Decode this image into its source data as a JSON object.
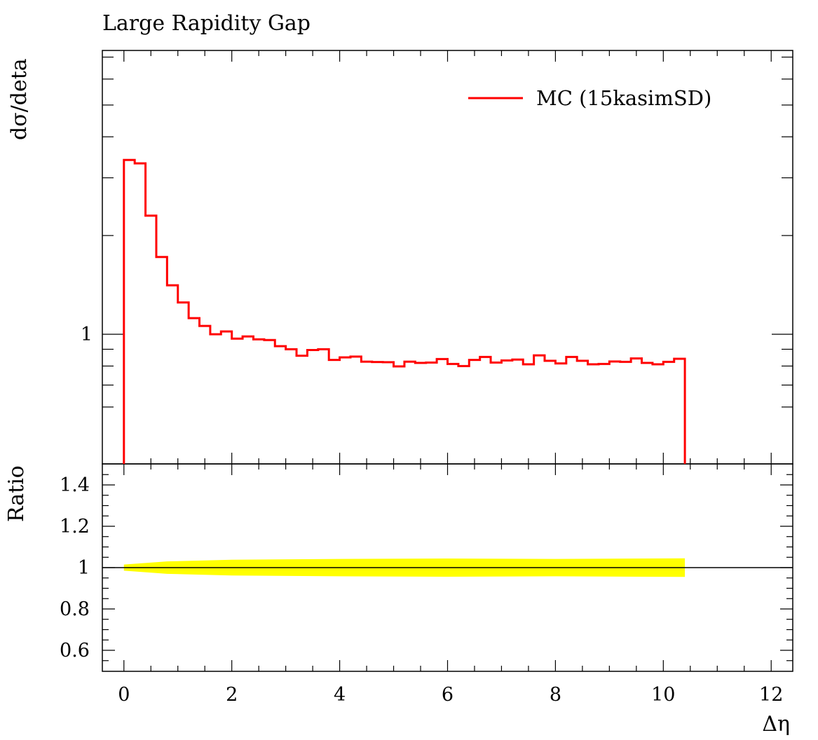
{
  "colors": {
    "mc": "#ff0000",
    "band": "#ffff00",
    "axis": "#000000"
  },
  "chart_data": {
    "type": "line",
    "title": "Large Rapidity Gap",
    "xlabel": "Δη",
    "ylabel": "dσ/deta",
    "ratio_ylabel": "Ratio",
    "legend": {
      "label": "MC (15kasimSD)",
      "position": "top-right"
    },
    "xlim": [
      -0.4,
      12.4
    ],
    "xticks": [
      "0",
      "2",
      "4",
      "6",
      "8",
      "10",
      "12"
    ],
    "xtick_values": [
      0,
      2,
      4,
      6,
      8,
      10,
      12
    ],
    "y_scale": "log",
    "yticks": [
      "1"
    ],
    "ytick_values": [
      1
    ],
    "ratio_ylim": [
      0.5,
      1.5
    ],
    "ratio_yticks": [
      "0.6",
      "0.8",
      "1",
      "1.2",
      "1.4"
    ],
    "ratio_ytick_values": [
      0.6,
      0.8,
      1.0,
      1.2,
      1.4
    ],
    "series": [
      {
        "name": "MC (15kasimSD)",
        "bin_edges": [
          0,
          0.2,
          0.4,
          0.6,
          0.8,
          1.0,
          1.2,
          1.4,
          1.6,
          1.8,
          2.0,
          2.2,
          2.4,
          2.6,
          2.8,
          3.0,
          3.2,
          3.4,
          3.6,
          3.8,
          4.0,
          4.2,
          4.4,
          4.6,
          4.8,
          5.0,
          5.2,
          5.4,
          5.6,
          5.8,
          6.0,
          6.2,
          6.4,
          6.6,
          6.8,
          7.0,
          7.2,
          7.4,
          7.6,
          7.8,
          8.0,
          8.2,
          8.4,
          8.6,
          8.8,
          9.0,
          9.2,
          9.4,
          9.6,
          9.8,
          10.0,
          10.2,
          10.4
        ],
        "values": [
          3.4,
          3.32,
          2.3,
          1.72,
          1.41,
          1.25,
          1.12,
          1.06,
          1.0,
          1.02,
          0.97,
          0.985,
          0.965,
          0.96,
          0.92,
          0.9,
          0.86,
          0.895,
          0.9,
          0.835,
          0.85,
          0.855,
          0.825,
          0.823,
          0.822,
          0.798,
          0.825,
          0.818,
          0.82,
          0.84,
          0.812,
          0.8,
          0.835,
          0.853,
          0.82,
          0.832,
          0.837,
          0.81,
          0.862,
          0.83,
          0.815,
          0.853,
          0.83,
          0.81,
          0.812,
          0.826,
          0.824,
          0.844,
          0.818,
          0.81,
          0.824,
          0.842
        ]
      }
    ],
    "ratio_band": {
      "x": [
        0,
        0.8,
        2.0,
        4.0,
        6.0,
        8.0,
        10.4
      ],
      "low": [
        0.985,
        0.97,
        0.962,
        0.958,
        0.956,
        0.958,
        0.955
      ],
      "high": [
        1.015,
        1.03,
        1.038,
        1.042,
        1.044,
        1.042,
        1.045
      ]
    }
  }
}
